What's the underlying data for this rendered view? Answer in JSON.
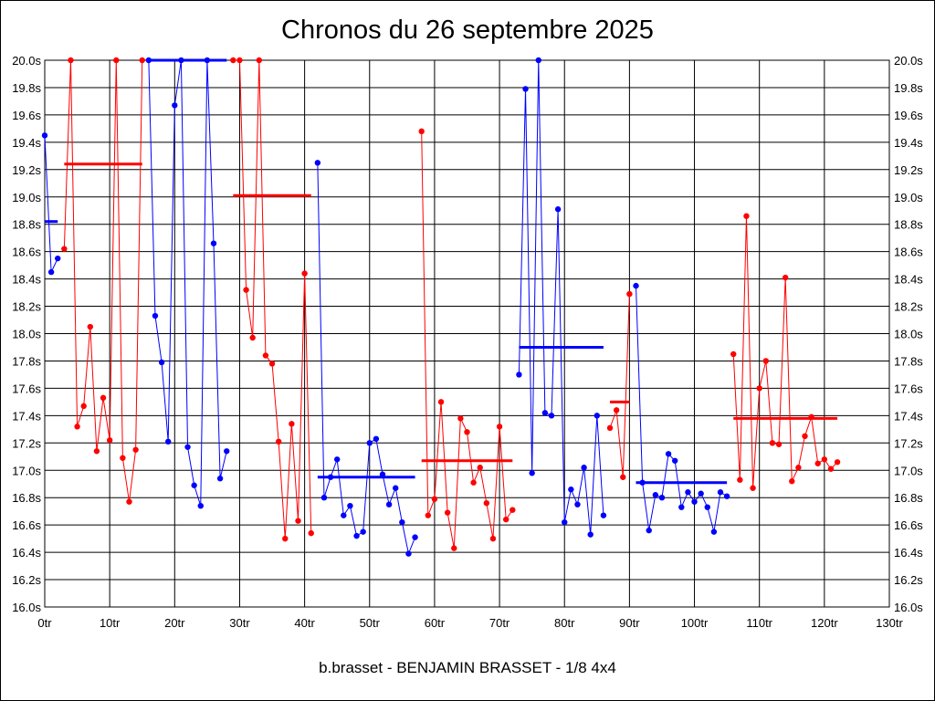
{
  "chart_data": {
    "type": "line",
    "title": "Chronos du 26 septembre 2025",
    "subtitle": "b.brasset - BENJAMIN BRASSET - 1/8 4x4",
    "xlabel": "",
    "ylabel": "",
    "xlim": [
      0,
      130
    ],
    "ylim": [
      16.0,
      20.0
    ],
    "x_tick_step": 10,
    "y_tick_step": 0.2,
    "x_tick_suffix": "tr",
    "y_tick_suffix": "s",
    "grid": true,
    "colors": {
      "red": "#ff0000",
      "blue": "#0000ff"
    },
    "series": [
      {
        "color": "blue",
        "points": [
          [
            0,
            19.45
          ],
          [
            1,
            18.45
          ],
          [
            2,
            18.55
          ]
        ],
        "mean": {
          "from": 0,
          "to": 2,
          "value": 18.82
        }
      },
      {
        "color": "red",
        "points": [
          [
            3,
            18.62
          ],
          [
            4,
            20.0
          ],
          [
            5,
            17.32
          ],
          [
            6,
            17.47
          ],
          [
            7,
            18.05
          ],
          [
            8,
            17.14
          ],
          [
            9,
            17.53
          ],
          [
            10,
            17.22
          ],
          [
            11,
            20.0
          ],
          [
            12,
            17.09
          ],
          [
            13,
            16.77
          ],
          [
            14,
            17.15
          ],
          [
            15,
            20.0
          ]
        ],
        "mean": {
          "from": 3,
          "to": 15,
          "value": 19.24
        }
      },
      {
        "color": "blue",
        "points": [
          [
            16,
            20.0
          ],
          [
            17,
            18.13
          ],
          [
            18,
            17.79
          ],
          [
            19,
            17.21
          ],
          [
            20,
            19.67
          ],
          [
            21,
            20.0
          ],
          [
            22,
            17.17
          ],
          [
            23,
            16.89
          ],
          [
            24,
            16.74
          ],
          [
            25,
            20.0
          ],
          [
            26,
            18.66
          ],
          [
            27,
            16.94
          ],
          [
            28,
            17.14
          ]
        ],
        "mean": {
          "from": 16,
          "to": 28,
          "value": 20.0
        }
      },
      {
        "color": "red",
        "points": [
          [
            29,
            20.0
          ],
          [
            30,
            20.0
          ],
          [
            31,
            18.32
          ],
          [
            32,
            17.97
          ],
          [
            33,
            20.0
          ],
          [
            34,
            17.84
          ],
          [
            35,
            17.78
          ],
          [
            36,
            17.21
          ],
          [
            37,
            16.5
          ],
          [
            38,
            17.34
          ],
          [
            39,
            16.63
          ],
          [
            40,
            18.44
          ],
          [
            41,
            16.54
          ]
        ],
        "mean": {
          "from": 29,
          "to": 41,
          "value": 19.01
        }
      },
      {
        "color": "blue",
        "points": [
          [
            42,
            19.25
          ],
          [
            43,
            16.8
          ],
          [
            44,
            16.95
          ],
          [
            45,
            17.08
          ],
          [
            46,
            16.67
          ],
          [
            47,
            16.74
          ],
          [
            48,
            16.52
          ],
          [
            49,
            16.55
          ],
          [
            50,
            17.2
          ],
          [
            51,
            17.23
          ],
          [
            52,
            16.97
          ],
          [
            53,
            16.75
          ],
          [
            54,
            16.87
          ],
          [
            55,
            16.62
          ],
          [
            56,
            16.39
          ],
          [
            57,
            16.51
          ]
        ],
        "mean": {
          "from": 42,
          "to": 57,
          "value": 16.95
        }
      },
      {
        "color": "red",
        "points": [
          [
            58,
            19.48
          ],
          [
            59,
            16.67
          ],
          [
            60,
            16.79
          ],
          [
            61,
            17.5
          ],
          [
            62,
            16.69
          ],
          [
            63,
            16.43
          ],
          [
            64,
            17.38
          ],
          [
            65,
            17.28
          ],
          [
            66,
            16.91
          ],
          [
            67,
            17.02
          ],
          [
            68,
            16.76
          ],
          [
            69,
            16.5
          ],
          [
            70,
            17.32
          ],
          [
            71,
            16.64
          ],
          [
            72,
            16.71
          ]
        ],
        "mean": {
          "from": 58,
          "to": 72,
          "value": 17.07
        }
      },
      {
        "color": "blue",
        "points": [
          [
            73,
            17.7
          ],
          [
            74,
            19.79
          ],
          [
            75,
            16.98
          ],
          [
            76,
            20.0
          ],
          [
            77,
            17.42
          ],
          [
            78,
            17.4
          ],
          [
            79,
            18.91
          ],
          [
            80,
            16.62
          ],
          [
            81,
            16.86
          ],
          [
            82,
            16.75
          ],
          [
            83,
            17.02
          ],
          [
            84,
            16.53
          ],
          [
            85,
            17.4
          ],
          [
            86,
            16.67
          ]
        ],
        "mean": {
          "from": 73,
          "to": 86,
          "value": 17.9
        }
      },
      {
        "color": "red",
        "points": [
          [
            87,
            17.31
          ],
          [
            88,
            17.44
          ],
          [
            89,
            16.95
          ],
          [
            90,
            18.29
          ]
        ],
        "mean": {
          "from": 87,
          "to": 90,
          "value": 17.5
        }
      },
      {
        "color": "blue",
        "points": [
          [
            91,
            18.35
          ],
          [
            92,
            16.91
          ],
          [
            93,
            16.56
          ],
          [
            94,
            16.82
          ],
          [
            95,
            16.8
          ],
          [
            96,
            17.12
          ],
          [
            97,
            17.07
          ],
          [
            98,
            16.73
          ],
          [
            99,
            16.84
          ],
          [
            100,
            16.77
          ],
          [
            101,
            16.83
          ],
          [
            102,
            16.73
          ],
          [
            103,
            16.55
          ],
          [
            104,
            16.84
          ],
          [
            105,
            16.81
          ]
        ],
        "mean": {
          "from": 91,
          "to": 105,
          "value": 16.91
        }
      },
      {
        "color": "red",
        "points": [
          [
            106,
            17.85
          ],
          [
            107,
            16.93
          ],
          [
            108,
            18.86
          ],
          [
            109,
            16.87
          ],
          [
            110,
            17.6
          ],
          [
            111,
            17.8
          ],
          [
            112,
            17.2
          ],
          [
            113,
            17.19
          ],
          [
            114,
            18.41
          ],
          [
            115,
            16.92
          ],
          [
            116,
            17.02
          ],
          [
            117,
            17.25
          ],
          [
            118,
            17.39
          ],
          [
            119,
            17.05
          ],
          [
            120,
            17.08
          ],
          [
            121,
            17.01
          ],
          [
            122,
            17.06
          ]
        ],
        "mean": {
          "from": 106,
          "to": 122,
          "value": 17.38
        }
      }
    ]
  }
}
